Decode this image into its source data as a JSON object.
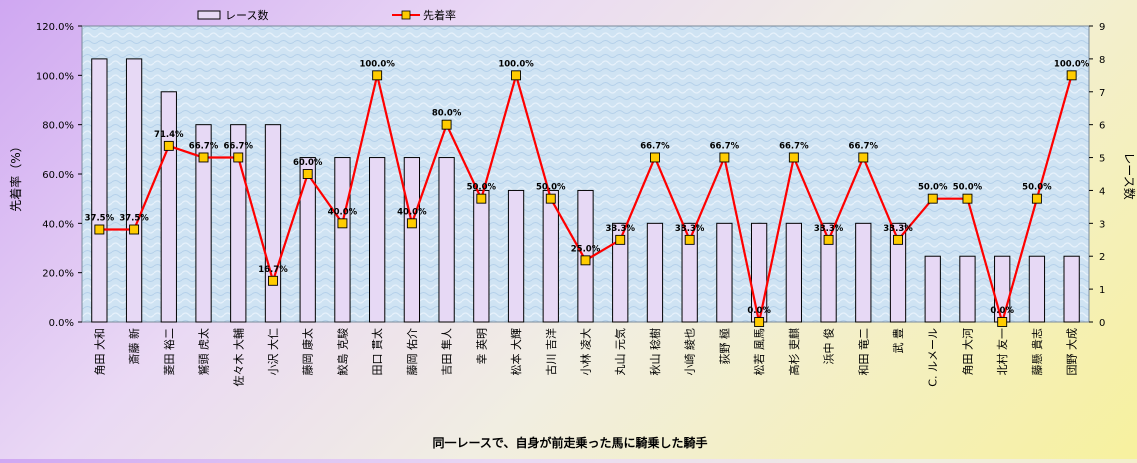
{
  "chart_data": {
    "type": "bar+line",
    "xlabel": "同一レースで、自身が前走乗った馬に騎乗した騎手",
    "ylabel_left": "先着率（%）",
    "ylabel_right": "レース数",
    "ylim_left": [
      0,
      120
    ],
    "ylim_right": [
      0,
      9
    ],
    "left_ticks": [
      "0.0%",
      "20.0%",
      "40.0%",
      "60.0%",
      "80.0%",
      "100.0%",
      "120.0%"
    ],
    "right_ticks": [
      "0",
      "1",
      "2",
      "3",
      "4",
      "5",
      "6",
      "7",
      "8",
      "9"
    ],
    "grid": false,
    "legend_position": "top",
    "bar_color": "#e7d9f5",
    "line_color": "#ff0000",
    "marker_color": "#ffcc00",
    "categories": [
      "角田 大和",
      "斎藤 新",
      "菱田 裕二",
      "鷲頭 虎太",
      "佐々木 大輔",
      "小沢 大仁",
      "藤岡 康太",
      "鮫島 克駿",
      "田口 貫太",
      "藤岡 佑介",
      "吉田 隼人",
      "幸 英明",
      "松本 大輝",
      "古川 吉洋",
      "小林 凌大",
      "丸山 元気",
      "秋山 稔樹",
      "小崎 綾也",
      "荻野 極",
      "松若 風馬",
      "高杉 吏麒",
      "浜中 俊",
      "和田 竜二",
      "武 豊",
      "C. ルメール",
      "角田 大河",
      "北村 友一",
      "藤懸 貴志",
      "団野 大成"
    ],
    "series": [
      {
        "name": "レース数",
        "type": "bar",
        "axis": "right",
        "values": [
          8,
          8,
          7,
          6,
          6,
          6,
          5,
          5,
          5,
          5,
          5,
          4,
          4,
          4,
          4,
          3,
          3,
          3,
          3,
          3,
          3,
          3,
          3,
          3,
          2,
          2,
          2,
          2,
          2
        ]
      },
      {
        "name": "先着率",
        "type": "line",
        "axis": "left",
        "values": [
          37.5,
          37.5,
          71.4,
          66.7,
          66.7,
          16.7,
          60.0,
          40.0,
          100.0,
          40.0,
          80.0,
          50.0,
          100.0,
          50.0,
          25.0,
          33.3,
          66.7,
          33.3,
          66.7,
          0.0,
          66.7,
          33.3,
          66.7,
          33.3,
          50.0,
          50.0,
          0.0,
          50.0,
          100.0
        ],
        "labels": [
          "37.5%",
          "37.5%",
          "71.4%",
          "66.7%",
          "66.7%",
          "16.7%",
          "60.0%",
          "40.0%",
          "100.0%",
          "40.0%",
          "80.0%",
          "50.0%",
          "100.0%",
          "50.0%",
          "25.0%",
          "33.3%",
          "66.7%",
          "33.3%",
          "66.7%",
          "0.0%",
          "66.7%",
          "33.3%",
          "66.7%",
          "33.3%",
          "50.0%",
          "50.0%",
          "0.0%",
          "50.0%",
          "100.0%"
        ]
      }
    ]
  }
}
